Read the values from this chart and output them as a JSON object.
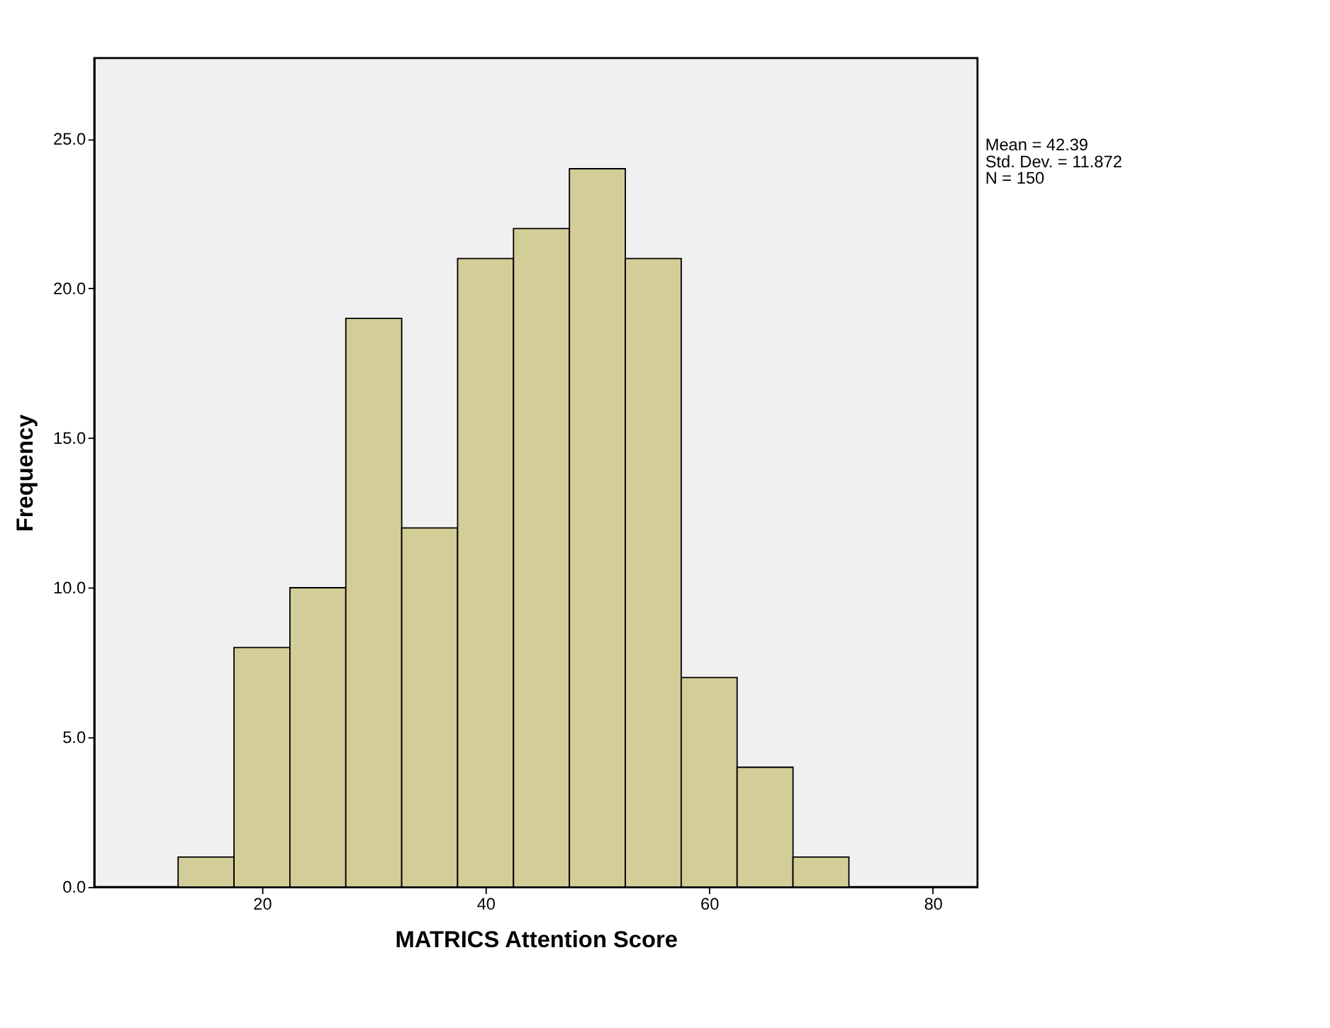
{
  "chart_data": {
    "type": "histogram",
    "xlabel": "MATRICS Attention Score",
    "ylabel": "Frequency",
    "bins": [
      12.5,
      17.5,
      22.5,
      27.5,
      32.5,
      37.5,
      42.5,
      47.5,
      52.5,
      57.5,
      62.5,
      67.5,
      72.5
    ],
    "values": [
      1,
      8,
      10,
      19,
      12,
      21,
      22,
      24,
      21,
      7,
      4,
      1
    ],
    "color": "#d3ce97",
    "xlim": [
      5,
      84
    ],
    "xticks": [
      20,
      40,
      60,
      80
    ],
    "ylim": [
      0,
      27.7
    ],
    "yticks": [
      {
        "value": 0,
        "label": "0.0"
      },
      {
        "value": 5,
        "label": "5.0"
      },
      {
        "value": 10,
        "label": "10.0"
      },
      {
        "value": 15,
        "label": "15.0"
      },
      {
        "value": 20,
        "label": "20.0"
      },
      {
        "value": 25,
        "label": "25.0"
      }
    ],
    "annotations": [
      "Mean = 42.39",
      "Std. Dev. = 11.872",
      "N = 150"
    ],
    "grid": false
  }
}
